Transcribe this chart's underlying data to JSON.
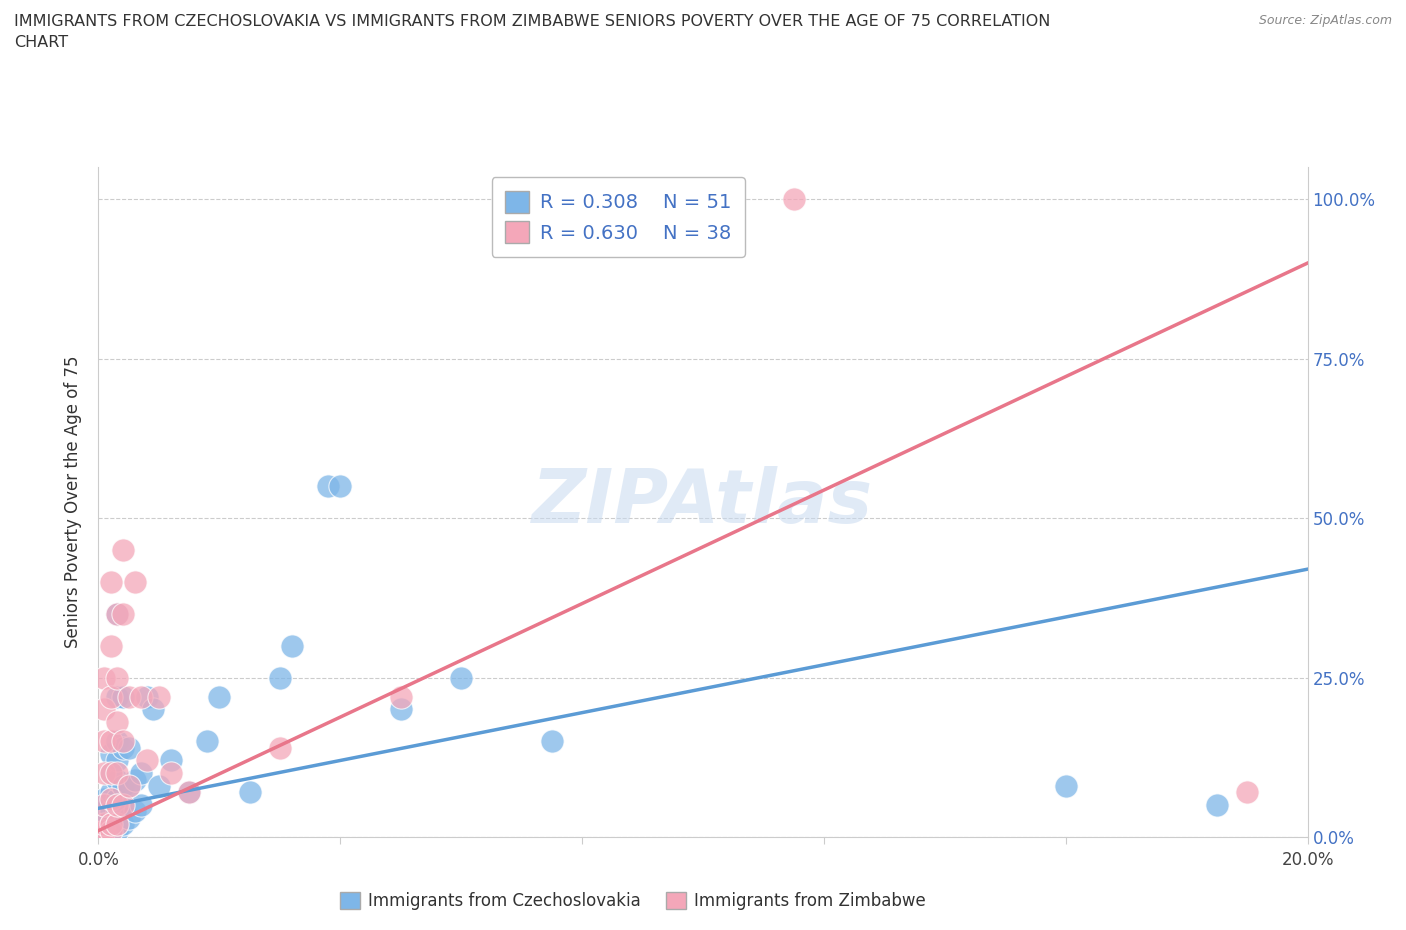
{
  "title": "IMMIGRANTS FROM CZECHOSLOVAKIA VS IMMIGRANTS FROM ZIMBABWE SENIORS POVERTY OVER THE AGE OF 75 CORRELATION\nCHART",
  "source": "Source: ZipAtlas.com",
  "ylabel": "Seniors Poverty Over the Age of 75",
  "xlim": [
    0.0,
    0.2
  ],
  "ylim": [
    0.0,
    1.05
  ],
  "yticks": [
    0.0,
    0.25,
    0.5,
    0.75,
    1.0
  ],
  "ytick_labels_right": [
    "0.0%",
    "25.0%",
    "50.0%",
    "75.0%",
    "100.0%"
  ],
  "xticks": [
    0.0,
    0.04,
    0.08,
    0.12,
    0.16,
    0.2
  ],
  "xtick_labels": [
    "0.0%",
    "",
    "",
    "",
    "",
    "20.0%"
  ],
  "legend_R1": "R = 0.308",
  "legend_N1": "N = 51",
  "legend_R2": "R = 0.630",
  "legend_N2": "N = 38",
  "color_czech": "#7EB6E8",
  "color_zimb": "#F4A7B9",
  "color_czech_line": "#5B9BD5",
  "color_zimb_line": "#E8768A",
  "watermark": "ZIPAtlas",
  "czech_scatter": [
    [
      0.0005,
      0.005
    ],
    [
      0.001,
      0.01
    ],
    [
      0.001,
      0.02
    ],
    [
      0.001,
      0.03
    ],
    [
      0.001,
      0.04
    ],
    [
      0.001,
      0.06
    ],
    [
      0.002,
      0.005
    ],
    [
      0.002,
      0.01
    ],
    [
      0.002,
      0.02
    ],
    [
      0.002,
      0.04
    ],
    [
      0.002,
      0.07
    ],
    [
      0.002,
      0.1
    ],
    [
      0.002,
      0.13
    ],
    [
      0.003,
      0.01
    ],
    [
      0.003,
      0.02
    ],
    [
      0.003,
      0.04
    ],
    [
      0.003,
      0.06
    ],
    [
      0.003,
      0.09
    ],
    [
      0.003,
      0.12
    ],
    [
      0.003,
      0.15
    ],
    [
      0.003,
      0.22
    ],
    [
      0.003,
      0.35
    ],
    [
      0.004,
      0.02
    ],
    [
      0.004,
      0.05
    ],
    [
      0.004,
      0.08
    ],
    [
      0.004,
      0.14
    ],
    [
      0.004,
      0.22
    ],
    [
      0.005,
      0.03
    ],
    [
      0.005,
      0.08
    ],
    [
      0.005,
      0.14
    ],
    [
      0.006,
      0.04
    ],
    [
      0.006,
      0.09
    ],
    [
      0.007,
      0.05
    ],
    [
      0.007,
      0.1
    ],
    [
      0.008,
      0.22
    ],
    [
      0.009,
      0.2
    ],
    [
      0.01,
      0.08
    ],
    [
      0.012,
      0.12
    ],
    [
      0.015,
      0.07
    ],
    [
      0.018,
      0.15
    ],
    [
      0.02,
      0.22
    ],
    [
      0.025,
      0.07
    ],
    [
      0.03,
      0.25
    ],
    [
      0.032,
      0.3
    ],
    [
      0.038,
      0.55
    ],
    [
      0.04,
      0.55
    ],
    [
      0.05,
      0.2
    ],
    [
      0.06,
      0.25
    ],
    [
      0.075,
      0.15
    ],
    [
      0.16,
      0.08
    ],
    [
      0.185,
      0.05
    ]
  ],
  "zimb_scatter": [
    [
      0.0005,
      0.005
    ],
    [
      0.001,
      0.01
    ],
    [
      0.001,
      0.02
    ],
    [
      0.001,
      0.05
    ],
    [
      0.001,
      0.1
    ],
    [
      0.001,
      0.15
    ],
    [
      0.001,
      0.2
    ],
    [
      0.001,
      0.25
    ],
    [
      0.002,
      0.01
    ],
    [
      0.002,
      0.02
    ],
    [
      0.002,
      0.06
    ],
    [
      0.002,
      0.1
    ],
    [
      0.002,
      0.15
    ],
    [
      0.002,
      0.22
    ],
    [
      0.002,
      0.3
    ],
    [
      0.002,
      0.4
    ],
    [
      0.003,
      0.02
    ],
    [
      0.003,
      0.05
    ],
    [
      0.003,
      0.1
    ],
    [
      0.003,
      0.18
    ],
    [
      0.003,
      0.25
    ],
    [
      0.003,
      0.35
    ],
    [
      0.004,
      0.05
    ],
    [
      0.004,
      0.15
    ],
    [
      0.004,
      0.35
    ],
    [
      0.004,
      0.45
    ],
    [
      0.005,
      0.08
    ],
    [
      0.005,
      0.22
    ],
    [
      0.006,
      0.4
    ],
    [
      0.007,
      0.22
    ],
    [
      0.008,
      0.12
    ],
    [
      0.01,
      0.22
    ],
    [
      0.012,
      0.1
    ],
    [
      0.015,
      0.07
    ],
    [
      0.03,
      0.14
    ],
    [
      0.05,
      0.22
    ],
    [
      0.115,
      1.0
    ],
    [
      0.19,
      0.07
    ]
  ],
  "line_czech": {
    "x0": 0.0,
    "y0": 0.045,
    "x1": 0.2,
    "y1": 0.42
  },
  "line_zimb": {
    "x0": 0.0,
    "y0": 0.01,
    "x1": 0.2,
    "y1": 0.9
  }
}
